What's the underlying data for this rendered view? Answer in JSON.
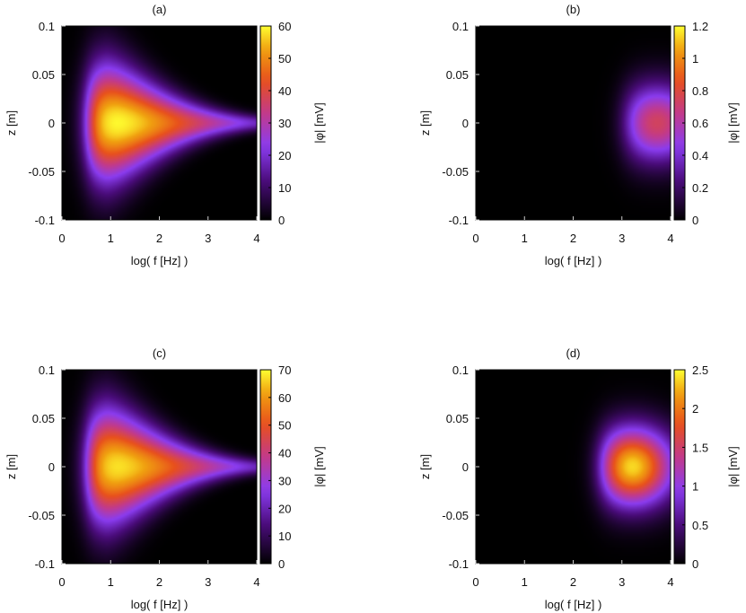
{
  "colorscale": {
    "name": "gnuplot-black-purple-red-yellow",
    "stops": [
      {
        "t": 0.0,
        "color": "#000000"
      },
      {
        "t": 0.2,
        "color": "#4a0c7a"
      },
      {
        "t": 0.38,
        "color": "#8a3cf0"
      },
      {
        "t": 0.55,
        "color": "#c23a8a"
      },
      {
        "t": 0.72,
        "color": "#e8501c"
      },
      {
        "t": 0.88,
        "color": "#f0a010"
      },
      {
        "t": 1.0,
        "color": "#ffff30"
      }
    ]
  },
  "chart_data": [
    {
      "type": "heatmap",
      "title": "(a)",
      "xlabel": "log( f [Hz] )",
      "ylabel": "z [m]",
      "colorbar_label": "|φ| [mV]",
      "xlim": [
        0,
        4
      ],
      "ylim": [
        -0.1,
        0.1
      ],
      "xticks": [
        "0",
        "1",
        "2",
        "3",
        "4"
      ],
      "yticks": [
        "-0.1",
        "-0.05",
        "0",
        "0.05",
        "0.1"
      ],
      "cbrange": [
        0,
        60
      ],
      "cbticks": [
        "0",
        "10",
        "20",
        "30",
        "40",
        "50",
        "60"
      ],
      "peak_location": {
        "x": 1.1,
        "z": 0
      },
      "peak_value": 58,
      "shape": "lobe widest near log f = 1, narrowing toward log f = 4"
    },
    {
      "type": "heatmap",
      "title": "(b)",
      "xlabel": "log( f [Hz] )",
      "ylabel": "z [m]",
      "colorbar_label": "|φ| [mV]",
      "xlim": [
        0,
        4
      ],
      "ylim": [
        -0.1,
        0.1
      ],
      "xticks": [
        "0",
        "1",
        "2",
        "3",
        "4"
      ],
      "yticks": [
        "-0.1",
        "-0.05",
        "0",
        "0.05",
        "0.1"
      ],
      "cbrange": [
        0,
        1.2
      ],
      "cbticks": [
        "0",
        "0.2",
        "0.4",
        "0.6",
        "0.8",
        "1",
        "1.2"
      ],
      "peak_location": {
        "x": 3.7,
        "z": 0
      },
      "peak_value": 0.75,
      "shape": "lobe centered near log f = 3.5"
    },
    {
      "type": "heatmap",
      "title": "(c)",
      "xlabel": "log( f [Hz] )",
      "ylabel": "z [m]",
      "colorbar_label": "|φ| [mV]",
      "xlim": [
        0,
        4
      ],
      "ylim": [
        -0.1,
        0.1
      ],
      "xticks": [
        "0",
        "1",
        "2",
        "3",
        "4"
      ],
      "yticks": [
        "-0.1",
        "-0.05",
        "0",
        "0.05",
        "0.1"
      ],
      "cbrange": [
        0,
        70
      ],
      "cbticks": [
        "0",
        "10",
        "20",
        "30",
        "40",
        "50",
        "60",
        "70"
      ],
      "peak_location": {
        "x": 1.1,
        "z": 0
      },
      "peak_value": 68,
      "shape": "lobe widest near log f = 1, narrowing toward log f = 4"
    },
    {
      "type": "heatmap",
      "title": "(d)",
      "xlabel": "log( f [Hz] )",
      "ylabel": "z [m]",
      "colorbar_label": "|φ| [mV]",
      "xlim": [
        0,
        4
      ],
      "ylim": [
        -0.1,
        0.1
      ],
      "xticks": [
        "0",
        "1",
        "2",
        "3",
        "4"
      ],
      "yticks": [
        "-0.1",
        "-0.05",
        "0",
        "0.05",
        "0.1"
      ],
      "cbrange": [
        0,
        2.5
      ],
      "cbticks": [
        "0",
        "0.5",
        "1",
        "1.5",
        "2",
        "2.5"
      ],
      "peak_location": {
        "x": 3.1,
        "z": 0
      },
      "peak_value": 2.4,
      "shape": "lobe centered near log f = 3.2"
    }
  ]
}
